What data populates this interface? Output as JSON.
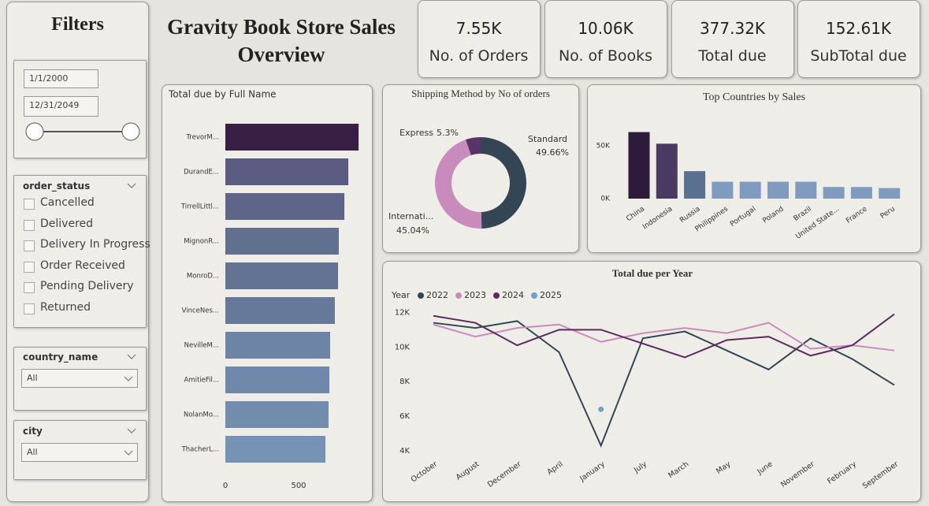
{
  "header": {
    "title": "Gravity Book Store Sales Overview"
  },
  "filters": {
    "title": "Filters",
    "date_from": "1/1/2000",
    "date_to": "12/31/2049",
    "slicers": [
      {
        "field": "order_status",
        "options": [
          "Cancelled",
          "Delivered",
          "Delivery In Progress",
          "Order Received",
          "Pending Delivery",
          "Returned"
        ]
      },
      {
        "field": "country_name",
        "selected": "All"
      },
      {
        "field": "city",
        "selected": "All"
      }
    ]
  },
  "kpis": [
    {
      "value": "7.55K",
      "label": "No. of Orders"
    },
    {
      "value": "10.06K",
      "label": "No. of Books"
    },
    {
      "value": "377.32K",
      "label": "Total due"
    },
    {
      "value": "152.61K",
      "label": "SubTotal due"
    }
  ],
  "chart_data": [
    {
      "type": "hbar",
      "title": "Total due by Full Name",
      "categories": [
        "TrevorM...",
        "DurandE...",
        "TirrellLittl...",
        "MignonR...",
        "MonroD...",
        "VinceNes...",
        "NevilleM...",
        "AmitieFil...",
        "NolanMo...",
        "ThacherL..."
      ],
      "values": [
        909,
        839,
        812,
        774,
        769,
        747,
        715,
        710,
        704,
        683
      ],
      "colors": [
        "#3a1f44",
        "#5b5a80",
        "#5f6588",
        "#62708f",
        "#637392",
        "#67799a",
        "#6d84a6",
        "#7088aa",
        "#728cad",
        "#7692b4"
      ],
      "xlim": [
        0,
        1000
      ],
      "xticks": [
        0,
        500
      ]
    },
    {
      "type": "pie",
      "donut": true,
      "title": "Shipping Method by No of orders",
      "categories": [
        "Standard",
        "Internati...",
        "Express"
      ],
      "values": [
        49.66,
        45.04,
        5.3
      ],
      "value_labels": [
        "49.66%",
        "45.04%",
        "5.3%"
      ],
      "colors": [
        "#344654",
        "#c98bbb",
        "#5a3466"
      ]
    },
    {
      "type": "bar",
      "title": "Top Countries by Sales",
      "categories": [
        "China",
        "Indonesia",
        "Russia",
        "Philippines",
        "Portugal",
        "Poland",
        "Brazil",
        "United State...",
        "France",
        "Peru"
      ],
      "values": [
        63000,
        52000,
        26000,
        16000,
        16000,
        16000,
        16000,
        11000,
        11000,
        10000
      ],
      "colors": [
        "#2e1a3a",
        "#4a3a62",
        "#5a7090",
        "#7f9bbf",
        "#7f9bbf",
        "#7f9bbf",
        "#7f9bbf",
        "#7f9bbf",
        "#7f9bbf",
        "#7f9bbf"
      ],
      "ylim": [
        0,
        70000
      ],
      "yticks": [
        {
          "value": 0,
          "label": "0K"
        },
        {
          "value": 50000,
          "label": "50K"
        }
      ]
    },
    {
      "type": "line",
      "title": "Total due per Year",
      "legend_title": "Year",
      "categories": [
        "October",
        "August",
        "December",
        "April",
        "January",
        "July",
        "March",
        "May",
        "June",
        "November",
        "February",
        "September"
      ],
      "series": [
        {
          "name": "2022",
          "color": "#344654",
          "values": [
            11400,
            11100,
            11500,
            9700,
            4300,
            10500,
            10900,
            9800,
            8700,
            10500,
            9300,
            7800
          ]
        },
        {
          "name": "2023",
          "color": "#c98bbb",
          "values": [
            11300,
            10600,
            11100,
            11300,
            10300,
            10800,
            11100,
            10800,
            11400,
            9900,
            10100,
            9800
          ]
        },
        {
          "name": "2024",
          "color": "#5a2c5e",
          "values": [
            11800,
            11400,
            10100,
            11000,
            11000,
            10200,
            9400,
            10400,
            10600,
            9500,
            10100,
            11900
          ]
        },
        {
          "name": "2025",
          "color": "#6fa0c8",
          "values": [
            null,
            null,
            null,
            null,
            6400,
            null,
            null,
            null,
            null,
            null,
            null,
            null
          ]
        }
      ],
      "ylim": [
        4000,
        12200
      ],
      "yticks": [
        {
          "value": 4000,
          "label": "4K"
        },
        {
          "value": 6000,
          "label": "6K"
        },
        {
          "value": 8000,
          "label": "8K"
        },
        {
          "value": 10000,
          "label": "10K"
        },
        {
          "value": 12000,
          "label": "12K"
        }
      ]
    }
  ]
}
